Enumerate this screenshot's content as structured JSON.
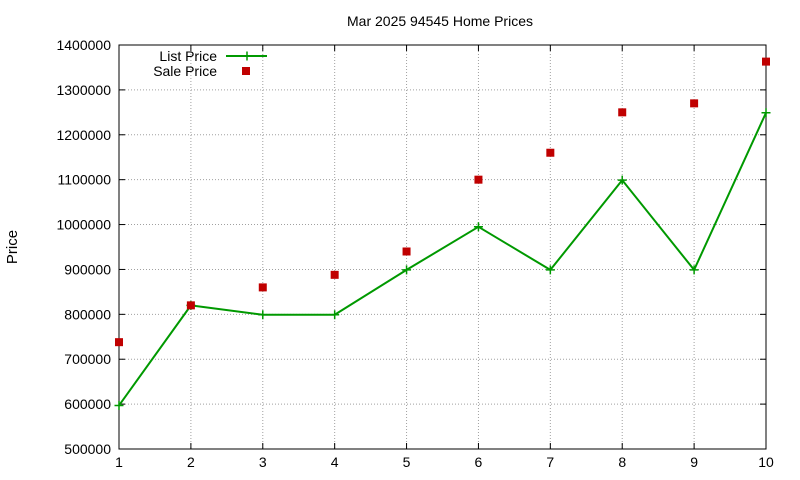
{
  "chart_data": {
    "type": "line",
    "title": "Mar 2025 94545 Home Prices",
    "xlabel": "",
    "ylabel": "Price",
    "x": [
      1,
      2,
      3,
      4,
      5,
      6,
      7,
      8,
      9,
      10
    ],
    "xlim": [
      1,
      10
    ],
    "ylim": [
      500000,
      1400000
    ],
    "xticks": [
      "1",
      "2",
      "3",
      "4",
      "5",
      "6",
      "7",
      "8",
      "9",
      "10"
    ],
    "yticks": [
      "500000",
      "600000",
      "700000",
      "800000",
      "900000",
      "1000000",
      "1100000",
      "1200000",
      "1300000",
      "1400000"
    ],
    "grid": true,
    "legend_position": "top-left",
    "series": [
      {
        "name": "List Price",
        "style": "line+cross",
        "color": "#009900",
        "values": [
          597000,
          820000,
          799000,
          799000,
          899000,
          995000,
          899000,
          1099000,
          899000,
          1249000
        ]
      },
      {
        "name": "Sale Price",
        "style": "square",
        "color": "#c00000",
        "values": [
          738000,
          820000,
          860000,
          888000,
          940000,
          1100000,
          1160000,
          1250000,
          1270000,
          1363000
        ]
      }
    ]
  }
}
